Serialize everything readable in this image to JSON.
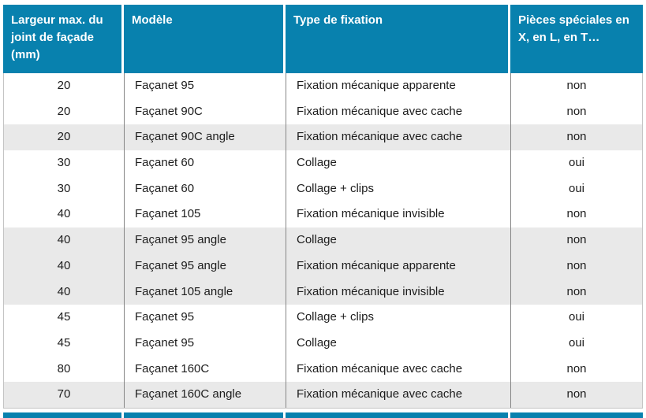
{
  "colors": {
    "header_bg": "#0881ae",
    "shaded_row_bg": "#e9e9e9",
    "body_text": "#1c1c1c",
    "column_divider": "#868686",
    "outer_border": "#c4c4c4"
  },
  "table": {
    "columns": [
      {
        "label": "Largeur max. du joint de façade (mm)"
      },
      {
        "label": "Modèle"
      },
      {
        "label": "Type de fixation"
      },
      {
        "label": "Pièces spéciales en X, en L, en T…"
      }
    ],
    "rows": [
      {
        "largeur": "20",
        "modele": "Façanet 95",
        "fixation": "Fixation mécanique apparente",
        "pieces": "non",
        "shaded": false
      },
      {
        "largeur": "20",
        "modele": "Façanet 90C",
        "fixation": "Fixation mécanique avec cache",
        "pieces": "non",
        "shaded": false
      },
      {
        "largeur": "20",
        "modele": "Façanet 90C angle",
        "fixation": "Fixation mécanique avec cache",
        "pieces": "non",
        "shaded": true
      },
      {
        "largeur": "30",
        "modele": "Façanet 60",
        "fixation": "Collage",
        "pieces": "oui",
        "shaded": false
      },
      {
        "largeur": "30",
        "modele": "Façanet 60",
        "fixation": "Collage + clips",
        "pieces": "oui",
        "shaded": false
      },
      {
        "largeur": "40",
        "modele": "Façanet 105",
        "fixation": "Fixation mécanique invisible",
        "pieces": "non",
        "shaded": false
      },
      {
        "largeur": "40",
        "modele": "Façanet 95 angle",
        "fixation": "Collage",
        "pieces": "non",
        "shaded": true
      },
      {
        "largeur": "40",
        "modele": "Façanet 95 angle",
        "fixation": "Fixation mécanique apparente",
        "pieces": "non",
        "shaded": true
      },
      {
        "largeur": "40",
        "modele": "Façanet 105 angle",
        "fixation": "Fixation mécanique invisible",
        "pieces": "non",
        "shaded": true
      },
      {
        "largeur": "45",
        "modele": "Façanet 95",
        "fixation": "Collage + clips",
        "pieces": "oui",
        "shaded": false
      },
      {
        "largeur": "45",
        "modele": "Façanet 95",
        "fixation": "Collage",
        "pieces": "oui",
        "shaded": false
      },
      {
        "largeur": "80",
        "modele": "Façanet 160C",
        "fixation": "Fixation mécanique avec cache",
        "pieces": "non",
        "shaded": false
      },
      {
        "largeur": "70",
        "modele": "Façanet 160C angle",
        "fixation": "Fixation mécanique avec cache",
        "pieces": "non",
        "shaded": true
      }
    ]
  }
}
